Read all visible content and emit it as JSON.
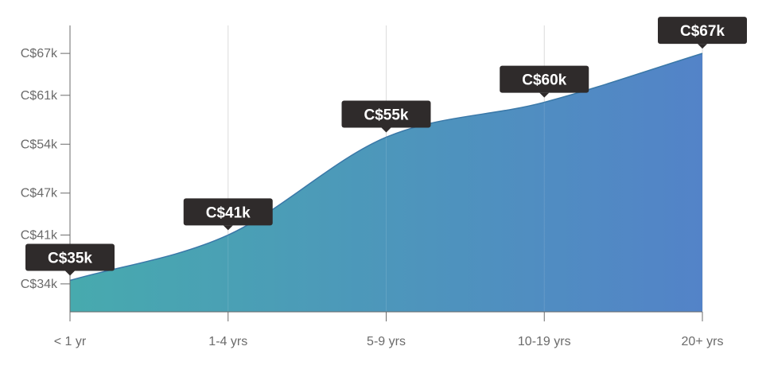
{
  "chart_data": {
    "type": "area",
    "categories": [
      "< 1 yr",
      "1-4 yrs",
      "5-9 yrs",
      "10-19 yrs",
      "20+ yrs"
    ],
    "values": [
      34.5,
      41,
      55,
      60,
      67
    ],
    "data_labels": [
      "C$35k",
      "C$41k",
      "C$55k",
      "C$60k",
      "C$67k"
    ],
    "y_ticks": [
      {
        "value": 34,
        "label": "C$34k"
      },
      {
        "value": 41,
        "label": "C$41k"
      },
      {
        "value": 47,
        "label": "C$47k"
      },
      {
        "value": 54,
        "label": "C$54k"
      },
      {
        "value": 61,
        "label": "C$61k"
      },
      {
        "value": 67,
        "label": "C$67k"
      }
    ],
    "ylim": [
      30,
      71
    ],
    "grid": {
      "vertical": true,
      "horizontal": false
    },
    "colors": {
      "fill_start": "#47aaae",
      "fill_end": "#5383c8",
      "line": "#3a78a8",
      "tooltip_bg": "#2f2b2b",
      "tooltip_text": "#ffffff",
      "axis": "#6b6b6b",
      "grid": "#dcdcdc"
    }
  }
}
